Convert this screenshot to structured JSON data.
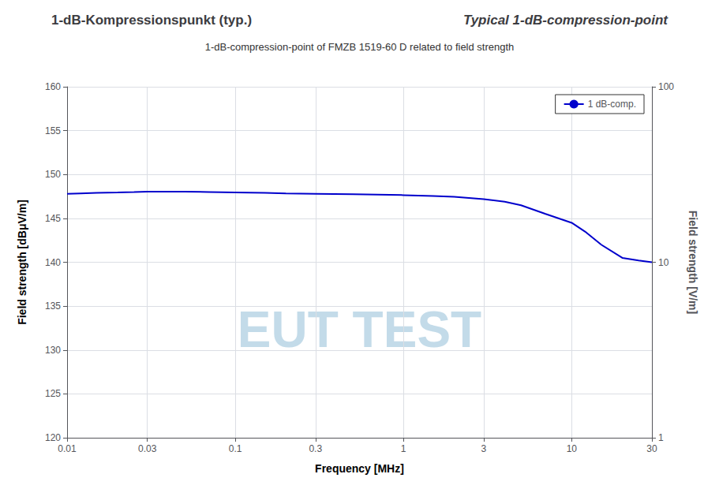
{
  "chart_data": {
    "type": "line",
    "title": [
      "1-dB-Kompressionspunkt (typ.)",
      "Typical 1-dB-compression-point"
    ],
    "subtitle": "1-dB-compression-point of FMZB 1519-60 D related to field strength",
    "xlabel": "Frequency [MHz]",
    "ylabel": "Field strength [dBμV/m]",
    "y2label": "Field strength [V/m]",
    "annotations": [
      "EUT TEST"
    ],
    "x": [
      0.01,
      0.012,
      0.015,
      0.02,
      0.025,
      0.03,
      0.04,
      0.05,
      0.07,
      0.1,
      0.15,
      0.2,
      0.3,
      0.5,
      0.7,
      1.0,
      1.5,
      2.0,
      3.0,
      4.0,
      5.0,
      7.0,
      10.0,
      12.0,
      15.0,
      20.0,
      25.0,
      30.0
    ],
    "series": [
      {
        "name": "1 dB-comp.",
        "color": "#0000cc",
        "values": [
          147.8,
          147.85,
          147.9,
          147.95,
          148.0,
          148.05,
          148.05,
          148.05,
          148.0,
          147.95,
          147.9,
          147.85,
          147.8,
          147.75,
          147.7,
          147.65,
          147.55,
          147.45,
          147.2,
          146.9,
          146.5,
          145.5,
          144.5,
          143.5,
          142.0,
          140.5,
          140.2,
          140.0
        ]
      }
    ],
    "xlim": [
      0.01,
      30
    ],
    "xticks": [
      0.01,
      0.03,
      0.1,
      0.3,
      1,
      3,
      10,
      30
    ],
    "ylim": [
      120,
      160
    ],
    "yticks": [
      120,
      125,
      130,
      135,
      140,
      145,
      150,
      155,
      160
    ],
    "y2lim": [
      1,
      100
    ],
    "y2ticks": [
      1,
      10,
      100
    ],
    "log": [
      "x",
      "y2"
    ],
    "grid": true,
    "legend": "upper right"
  }
}
